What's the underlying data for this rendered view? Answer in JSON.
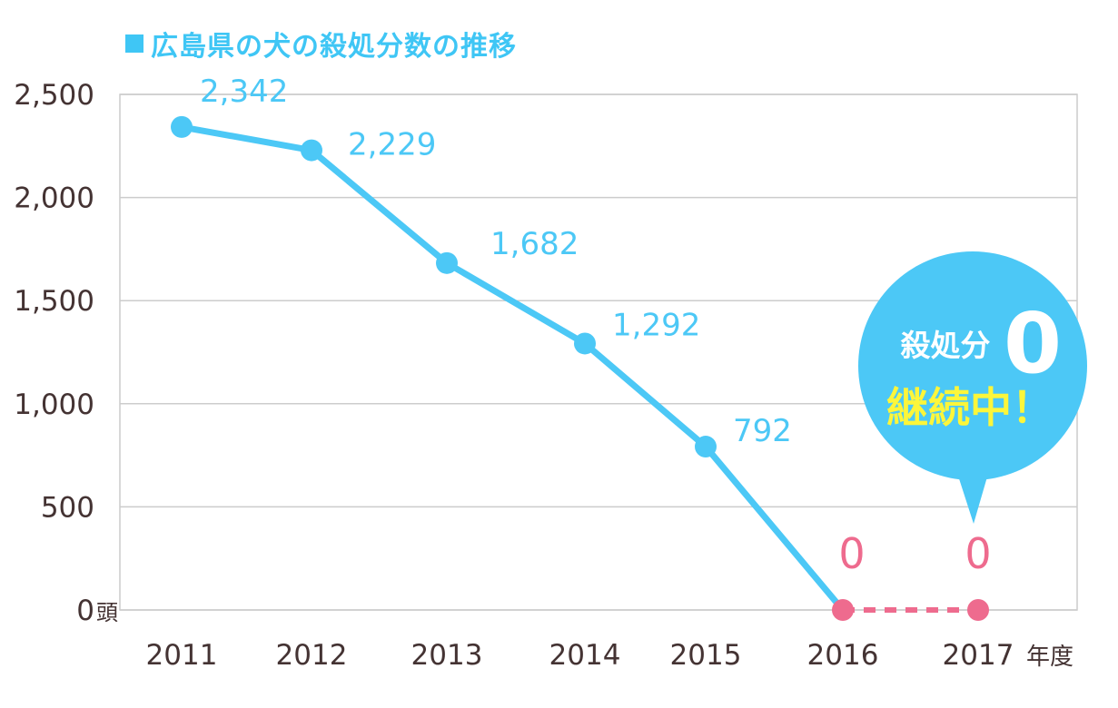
{
  "title": "広島県の犬の殺処分数の推移",
  "chart_data": {
    "type": "line",
    "title": "広島県の犬の殺処分数の推移",
    "x": [
      "2011",
      "2012",
      "2013",
      "2014",
      "2015",
      "2016",
      "2017"
    ],
    "x_unit": "年度",
    "y_unit": "頭",
    "ylim": [
      0,
      2500
    ],
    "yticks": [
      0,
      500,
      1000,
      1500,
      2000,
      2500
    ],
    "ytick_labels": [
      "0",
      "500",
      "1,000",
      "1,500",
      "2,000",
      "2,500"
    ],
    "grid": true,
    "series": [
      {
        "values": [
          2342,
          2229,
          1682,
          1292,
          792,
          0,
          0
        ],
        "labels": [
          "2,342",
          "2,229",
          "1,682",
          "1,292",
          "792",
          "0",
          "0"
        ],
        "color": "#4cc8f6",
        "zero_color": "#ee6b8e"
      }
    ]
  },
  "callout": {
    "line1": "殺処分",
    "big_number": "0",
    "line2": "継続中！",
    "bg_color": "#4cc8f6",
    "line2_color": "#fcf63a"
  },
  "colors": {
    "accent": "#3fc6f5",
    "line": "#4cc8f6",
    "zero": "#ee6b8e",
    "grid": "#cccccc",
    "axis_text": "#443333"
  }
}
